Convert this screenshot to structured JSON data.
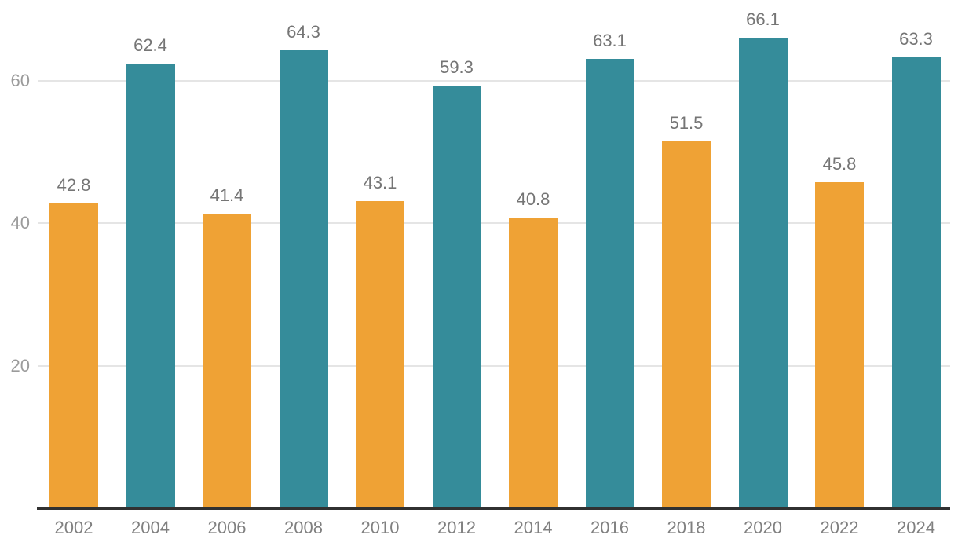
{
  "chart_data": {
    "type": "bar",
    "title": "",
    "xlabel": "",
    "ylabel": "",
    "categories": [
      "2002",
      "2004",
      "2006",
      "2008",
      "2010",
      "2012",
      "2014",
      "2016",
      "2018",
      "2020",
      "2022",
      "2024"
    ],
    "values": [
      42.8,
      62.4,
      41.4,
      64.3,
      43.1,
      59.3,
      40.8,
      63.1,
      51.5,
      66.1,
      45.8,
      63.3
    ],
    "value_labels": [
      "42.8",
      "62.4",
      "41.4",
      "64.3",
      "43.1",
      "59.3",
      "40.8",
      "63.1",
      "51.5",
      "66.1",
      "45.8",
      "63.3"
    ],
    "bar_colors": [
      "#EFA235",
      "#358C9A",
      "#EFA235",
      "#358C9A",
      "#EFA235",
      "#358C9A",
      "#EFA235",
      "#358C9A",
      "#EFA235",
      "#358C9A",
      "#EFA235",
      "#358C9A"
    ],
    "yticks": [
      20,
      40,
      60
    ],
    "ylim": [
      0,
      70
    ],
    "grid": true,
    "legend": null,
    "legend_position": "none"
  },
  "colors": {
    "bar_orange": "#EFA235",
    "bar_teal": "#358C9A",
    "gridline": "#E5E5E5",
    "axis_line": "#313131",
    "y_tick_label": "#9B9B9B",
    "value_label": "#757575",
    "x_tick_label": "#808080",
    "background": "#FFFFFF"
  }
}
